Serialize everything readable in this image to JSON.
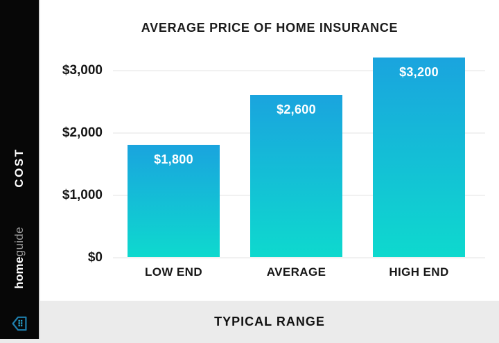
{
  "sidebar": {
    "cost_label": "COST",
    "brand_bold": "home",
    "brand_light": "guide"
  },
  "footer": {
    "label": "TYPICAL RANGE"
  },
  "chart_data": {
    "type": "bar",
    "title": "AVERAGE PRICE OF HOME INSURANCE",
    "categories": [
      "LOW END",
      "AVERAGE",
      "HIGH END"
    ],
    "values": [
      1800,
      2600,
      3200
    ],
    "value_labels": [
      "$1,800",
      "$2,600",
      "$3,200"
    ],
    "ylabel": "COST",
    "xlabel": "TYPICAL RANGE",
    "ylim": [
      0,
      3200
    ],
    "y_ticks": [
      {
        "value": 0,
        "label": "$0"
      },
      {
        "value": 1000,
        "label": "$1,000"
      },
      {
        "value": 2000,
        "label": "$2,000"
      },
      {
        "value": 3000,
        "label": "$3,000"
      }
    ],
    "grid": "horizontal",
    "legend": "none",
    "bar_color_top": "#1aa4de",
    "bar_color_bottom": "#0ed9ce"
  },
  "colors": {
    "sidebar_bg": "#070707",
    "footer_bg": "#ebebeb",
    "gridline": "#f1f1f1",
    "text": "#1c1c1c",
    "bar_label": "#ffffff",
    "logo_stroke": "#1e7fae",
    "logo_dots": "#2aa0c8"
  }
}
